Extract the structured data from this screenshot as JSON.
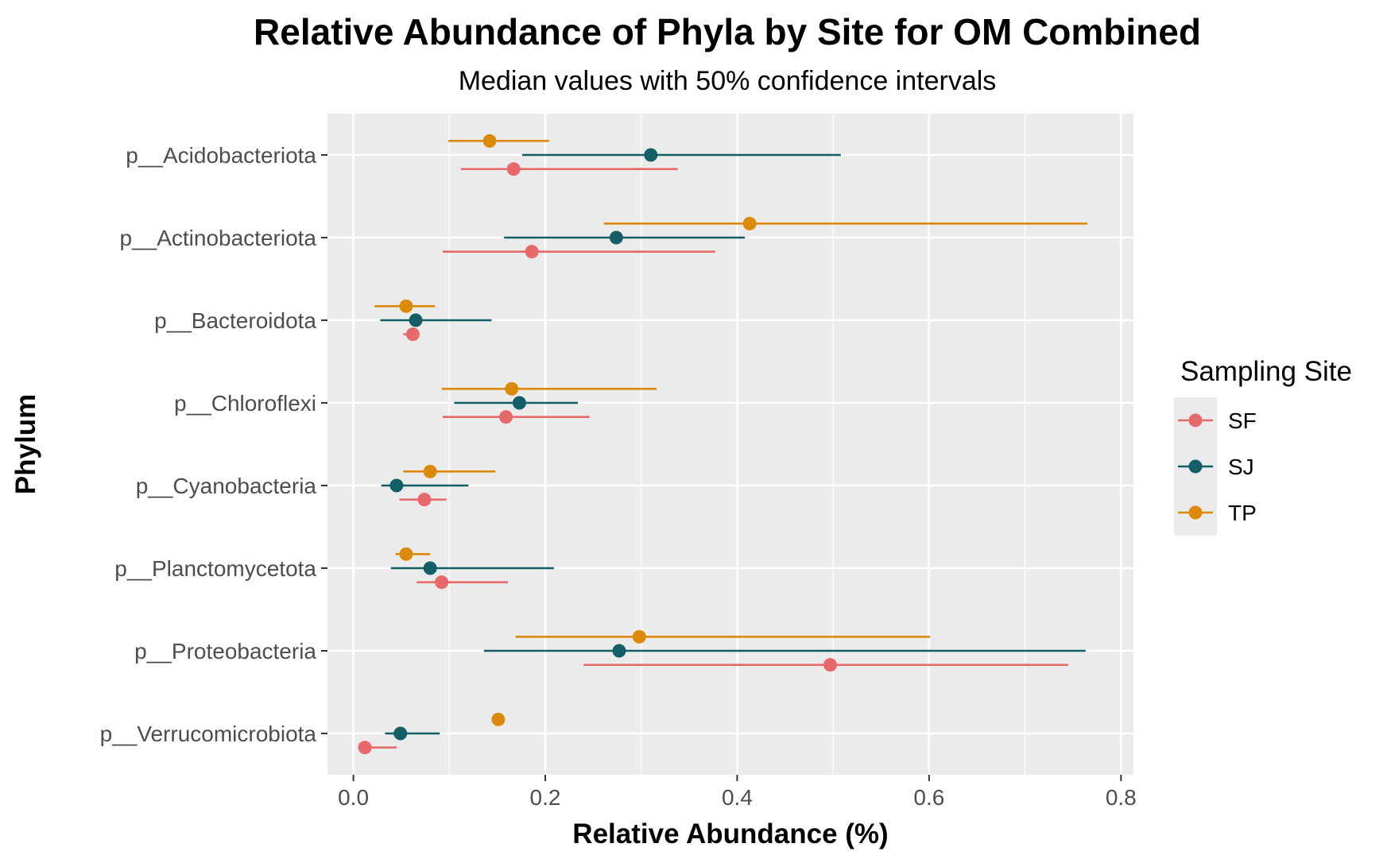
{
  "chart_data": {
    "type": "scatter",
    "title": "Relative Abundance of Phyla by Site for OM Combined",
    "subtitle": "Median values with 50% confidence intervals",
    "xlabel": "Relative Abundance (%)",
    "ylabel": "Phylum",
    "xlim": [
      -0.027,
      0.813
    ],
    "x_ticks": [
      "0.0",
      "0.2",
      "0.4",
      "0.6",
      "0.8"
    ],
    "x_tick_values": [
      0,
      0.2,
      0.4,
      0.6,
      0.8
    ],
    "categories": [
      "p__Verrucomicrobiota",
      "p__Proteobacteria",
      "p__Planctomycetota",
      "p__Cyanobacteria",
      "p__Chloroflexi",
      "p__Bacteroidota",
      "p__Actinobacteriota",
      "p__Acidobacteriota"
    ],
    "grid": true,
    "legend": {
      "title": "Sampling Site",
      "position": "right"
    },
    "series": [
      {
        "name": "SF",
        "color": "#e8696b",
        "points": [
          {
            "category": "p__Verrucomicrobiota",
            "median": 0.012,
            "low": 0.005,
            "high": 0.045
          },
          {
            "category": "p__Proteobacteria",
            "median": 0.497,
            "low": 0.24,
            "high": 0.745
          },
          {
            "category": "p__Planctomycetota",
            "median": 0.092,
            "low": 0.066,
            "high": 0.161
          },
          {
            "category": "p__Cyanobacteria",
            "median": 0.074,
            "low": 0.048,
            "high": 0.097
          },
          {
            "category": "p__Chloroflexi",
            "median": 0.159,
            "low": 0.093,
            "high": 0.246
          },
          {
            "category": "p__Bacteroidota",
            "median": 0.062,
            "low": 0.052,
            "high": 0.068
          },
          {
            "category": "p__Actinobacteriota",
            "median": 0.186,
            "low": 0.093,
            "high": 0.377
          },
          {
            "category": "p__Acidobacteriota",
            "median": 0.167,
            "low": 0.112,
            "high": 0.338
          }
        ]
      },
      {
        "name": "SJ",
        "color": "#135e67",
        "points": [
          {
            "category": "p__Verrucomicrobiota",
            "median": 0.049,
            "low": 0.033,
            "high": 0.09
          },
          {
            "category": "p__Proteobacteria",
            "median": 0.277,
            "low": 0.136,
            "high": 0.763
          },
          {
            "category": "p__Planctomycetota",
            "median": 0.08,
            "low": 0.039,
            "high": 0.209
          },
          {
            "category": "p__Cyanobacteria",
            "median": 0.045,
            "low": 0.029,
            "high": 0.12
          },
          {
            "category": "p__Chloroflexi",
            "median": 0.173,
            "low": 0.105,
            "high": 0.234
          },
          {
            "category": "p__Bacteroidota",
            "median": 0.065,
            "low": 0.028,
            "high": 0.144
          },
          {
            "category": "p__Actinobacteriota",
            "median": 0.274,
            "low": 0.157,
            "high": 0.408
          },
          {
            "category": "p__Acidobacteriota",
            "median": 0.31,
            "low": 0.176,
            "high": 0.508
          }
        ]
      },
      {
        "name": "TP",
        "color": "#dd8a0b",
        "points": [
          {
            "category": "p__Verrucomicrobiota",
            "median": 0.151,
            "low": 0.151,
            "high": 0.151
          },
          {
            "category": "p__Proteobacteria",
            "median": 0.298,
            "low": 0.169,
            "high": 0.601
          },
          {
            "category": "p__Planctomycetota",
            "median": 0.055,
            "low": 0.044,
            "high": 0.08
          },
          {
            "category": "p__Cyanobacteria",
            "median": 0.08,
            "low": 0.052,
            "high": 0.148
          },
          {
            "category": "p__Chloroflexi",
            "median": 0.165,
            "low": 0.092,
            "high": 0.316
          },
          {
            "category": "p__Bacteroidota",
            "median": 0.055,
            "low": 0.022,
            "high": 0.085
          },
          {
            "category": "p__Actinobacteriota",
            "median": 0.413,
            "low": 0.261,
            "high": 0.765
          },
          {
            "category": "p__Acidobacteriota",
            "median": 0.142,
            "low": 0.099,
            "high": 0.204
          }
        ]
      }
    ]
  }
}
